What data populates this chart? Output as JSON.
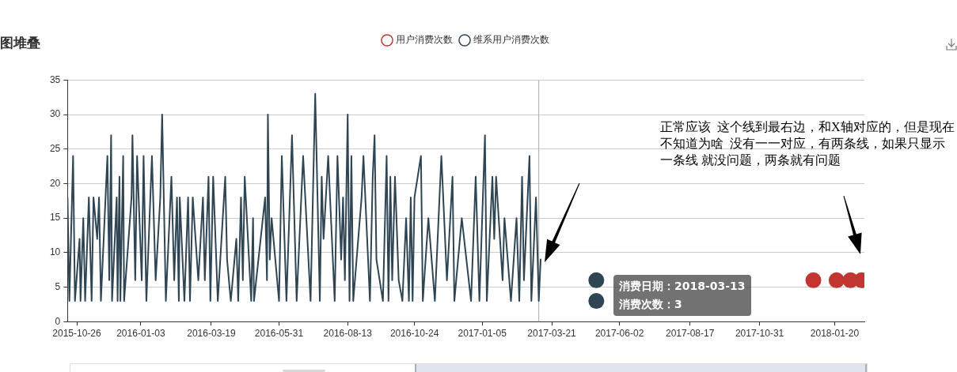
{
  "chart_data": {
    "type": "line",
    "title": "图堆叠",
    "legend": "top",
    "grid": "y",
    "marker": "none",
    "line_style": "solid",
    "xlim": [
      "2015-10-16",
      "2018-02-21"
    ],
    "xticks": [
      "2015-10-26",
      "2016-01-03",
      "2016-03-19",
      "2016-05-31",
      "2016-08-13",
      "2016-10-24",
      "2017-01-05",
      "2017-03-21",
      "2017-06-02",
      "2017-08-17",
      "2017-10-31",
      "2018-01-20"
    ],
    "ylim": [
      0,
      35
    ],
    "yticks": [
      0,
      5,
      10,
      15,
      20,
      25,
      30,
      35
    ],
    "series": [
      {
        "name": "用户消费次数",
        "type": "scatter",
        "marker": "circle",
        "color": "#c23531",
        "x": [
          "2017-12-28",
          "2018-01-22",
          "2018-02-06",
          "2018-02-18"
        ],
        "values": [
          6,
          6,
          6,
          6
        ]
      },
      {
        "name": "维系用户消费次数",
        "color": "#2f4554",
        "x": [
          "2015-10-16",
          "2015-10-18",
          "2015-10-22",
          "2015-10-24",
          "2015-10-29",
          "2015-10-30",
          "2015-11-02",
          "2015-11-04",
          "2015-11-08",
          "2015-11-11",
          "2015-11-13",
          "2015-11-17",
          "2015-11-19",
          "2015-11-21",
          "2015-11-28",
          "2015-11-30",
          "2015-12-02",
          "2015-12-03",
          "2015-12-08",
          "2015-12-09",
          "2015-12-11",
          "2015-12-12",
          "2015-12-15",
          "2015-12-16",
          "2015-12-24",
          "2015-12-25",
          "2015-12-28",
          "2015-12-30",
          "2016-01-04",
          "2016-01-06",
          "2016-01-09",
          "2016-01-15",
          "2016-01-19",
          "2016-01-24",
          "2016-01-26",
          "2016-01-30",
          "2016-02-05",
          "2016-02-08",
          "2016-02-11",
          "2016-02-13",
          "2016-02-14",
          "2016-02-19",
          "2016-02-23",
          "2016-02-25",
          "2016-02-28",
          "2016-03-05",
          "2016-03-10",
          "2016-03-12",
          "2016-03-16",
          "2016-03-18",
          "2016-03-21",
          "2016-03-26",
          "2016-04-03",
          "2016-04-05",
          "2016-04-09",
          "2016-04-15",
          "2016-04-17",
          "2016-04-20",
          "2016-04-22",
          "2016-04-24",
          "2016-05-01",
          "2016-05-03",
          "2016-05-04",
          "2016-05-16",
          "2016-05-18",
          "2016-05-19",
          "2016-05-21",
          "2016-05-23",
          "2016-05-31",
          "2016-06-03",
          "2016-06-08",
          "2016-06-14",
          "2016-06-19",
          "2016-06-26",
          "2016-07-04",
          "2016-07-09",
          "2016-07-14",
          "2016-07-16",
          "2016-07-18",
          "2016-07-23",
          "2016-07-30",
          "2016-08-02",
          "2016-08-06",
          "2016-08-08",
          "2016-08-10",
          "2016-08-13",
          "2016-08-15",
          "2016-08-17",
          "2016-08-19",
          "2016-08-28",
          "2016-08-30",
          "2016-09-06",
          "2016-09-09",
          "2016-09-11",
          "2016-09-13",
          "2016-09-20",
          "2016-09-24",
          "2016-09-26",
          "2016-09-28",
          "2016-09-30",
          "2016-10-03",
          "2016-10-07",
          "2016-10-11",
          "2016-10-15",
          "2016-10-18",
          "2016-10-20",
          "2016-10-22",
          "2016-10-24",
          "2016-10-31",
          "2016-11-02",
          "2016-11-08",
          "2016-11-15",
          "2016-11-22",
          "2016-11-28",
          "2016-12-04",
          "2016-12-06",
          "2016-12-14",
          "2016-12-24",
          "2016-12-29",
          "2017-01-02",
          "2017-01-08",
          "2017-01-10",
          "2017-01-16",
          "2017-01-18",
          "2017-01-20",
          "2017-01-27",
          "2017-01-29",
          "2017-02-05",
          "2017-02-11",
          "2017-02-14",
          "2017-02-17",
          "2017-02-19",
          "2017-02-25",
          "2017-02-27",
          "2017-03-04",
          "2017-03-07",
          "2017-03-09"
        ],
        "values": [
          18,
          3,
          24,
          3,
          12,
          3,
          15,
          3,
          18,
          3,
          18,
          12,
          18,
          3,
          24,
          6,
          27,
          3,
          18,
          3,
          21,
          3,
          24,
          3,
          18,
          27,
          6,
          24,
          6,
          24,
          3,
          24,
          6,
          18,
          30,
          3,
          21,
          6,
          18,
          3,
          18,
          3,
          18,
          3,
          18,
          6,
          18,
          6,
          21,
          3,
          21,
          3,
          21,
          9,
          3,
          12,
          3,
          18,
          6,
          21,
          3,
          15,
          3,
          18,
          6,
          30,
          9,
          15,
          3,
          24,
          3,
          27,
          3,
          24,
          3,
          33,
          3,
          21,
          12,
          24,
          3,
          24,
          9,
          18,
          6,
          30,
          3,
          24,
          3,
          18,
          24,
          3,
          21,
          27,
          9,
          3,
          24,
          3,
          21,
          6,
          21,
          6,
          3,
          15,
          3,
          18,
          3,
          18,
          24,
          3,
          15,
          3,
          24,
          6,
          21,
          3,
          15,
          3,
          21,
          3,
          27,
          3,
          21,
          12,
          21,
          6,
          15,
          3,
          15,
          3,
          21,
          6,
          24,
          3,
          18,
          3,
          9
        ]
      },
      {
        "type": "scatter",
        "marker": "circle",
        "color": "#2f4554",
        "x": [
          "2017-05-08",
          "2017-05-08"
        ],
        "values": [
          6,
          3
        ]
      }
    ],
    "ref_lines": [
      {
        "axis": "x",
        "value": "2017-03-07",
        "color": "#aaaaaa"
      }
    ],
    "annotations": [
      "正常应该  这个线到最右边，和X轴对应的，但是现在不知道为啥  没有一一对应，有两条线，如果只显示一条线 就没问题，两条就有问题",
      "消费日期：2018-03-13",
      "消费次数：3"
    ]
  }
}
